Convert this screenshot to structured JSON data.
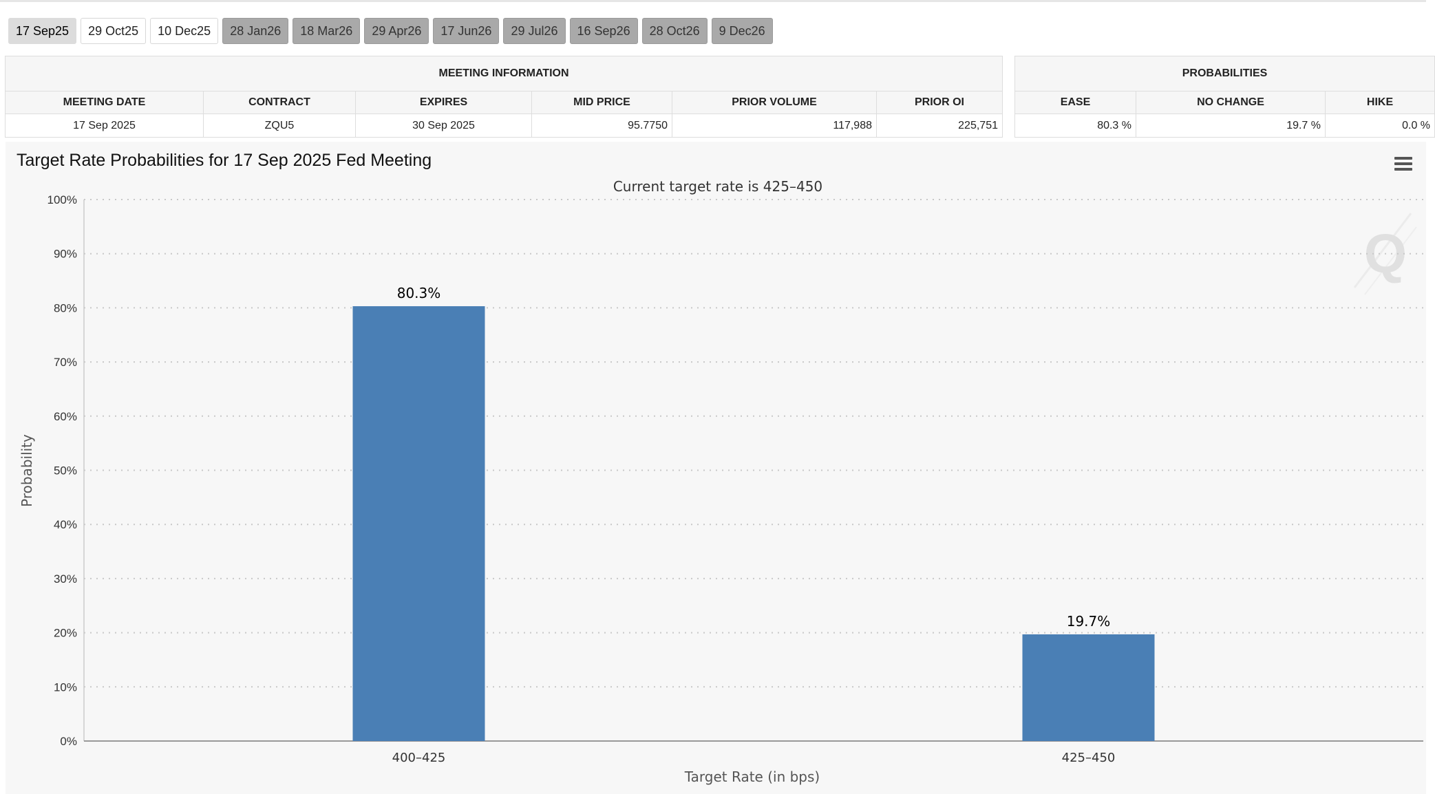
{
  "tabs": [
    {
      "label": "17 Sep25",
      "state": "selected"
    },
    {
      "label": "29 Oct25",
      "state": "light"
    },
    {
      "label": "10 Dec25",
      "state": "light"
    },
    {
      "label": "28 Jan26",
      "state": "dark"
    },
    {
      "label": "18 Mar26",
      "state": "dark"
    },
    {
      "label": "29 Apr26",
      "state": "dark"
    },
    {
      "label": "17 Jun26",
      "state": "dark"
    },
    {
      "label": "29 Jul26",
      "state": "dark"
    },
    {
      "label": "16 Sep26",
      "state": "dark"
    },
    {
      "label": "28 Oct26",
      "state": "dark"
    },
    {
      "label": "9 Dec26",
      "state": "dark"
    }
  ],
  "meeting_info": {
    "title": "MEETING INFORMATION",
    "headers": {
      "meeting_date": "MEETING DATE",
      "contract": "CONTRACT",
      "expires": "EXPIRES",
      "mid_price": "MID PRICE",
      "prior_volume": "PRIOR VOLUME",
      "prior_oi": "PRIOR OI"
    },
    "row": {
      "meeting_date": "17 Sep 2025",
      "contract": "ZQU5",
      "expires": "30 Sep 2025",
      "mid_price": "95.7750",
      "prior_volume": "117,988",
      "prior_oi": "225,751"
    }
  },
  "probabilities": {
    "title": "PROBABILITIES",
    "headers": {
      "ease": "EASE",
      "no_change": "NO CHANGE",
      "hike": "HIKE"
    },
    "row": {
      "ease": "80.3 %",
      "no_change": "19.7 %",
      "hike": "0.0 %"
    }
  },
  "chart_data": {
    "type": "bar",
    "title": "Target Rate Probabilities for 17 Sep 2025 Fed Meeting",
    "subtitle": "Current target rate is 425–450",
    "xlabel": "Target Rate (in bps)",
    "ylabel": "Probability",
    "categories": [
      "400–425",
      "425–450"
    ],
    "values": [
      80.3,
      19.7
    ],
    "data_labels": [
      "80.3%",
      "19.7%"
    ],
    "ylim": [
      0,
      100
    ],
    "yticks": [
      "0%",
      "10%",
      "20%",
      "30%",
      "40%",
      "50%",
      "60%",
      "70%",
      "80%",
      "90%",
      "100%"
    ],
    "bar_color": "#4a7fb5",
    "grid": "dotted horizontal",
    "legend": "none"
  },
  "icons": {
    "menu": "hamburger-menu-icon",
    "watermark": "q-watermark"
  }
}
